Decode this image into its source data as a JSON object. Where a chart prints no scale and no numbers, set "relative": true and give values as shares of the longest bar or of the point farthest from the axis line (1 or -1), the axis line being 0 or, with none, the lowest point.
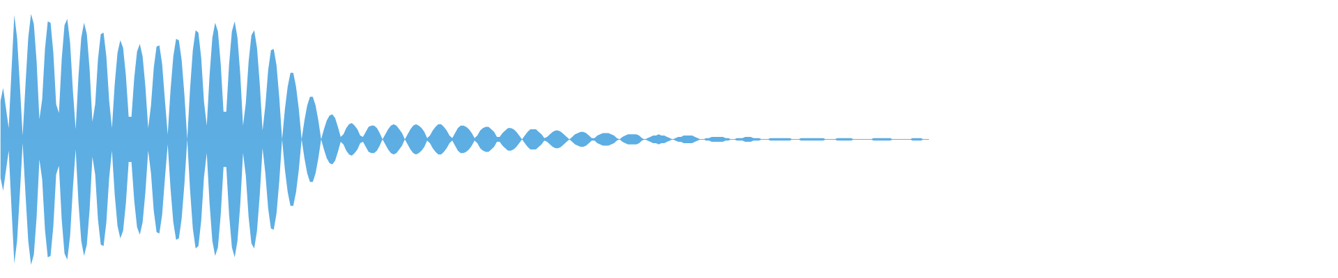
{
  "chart_data": {
    "type": "area",
    "relative": true,
    "tick_labels": false,
    "categories": [
      null,
      null,
      null,
      null,
      null,
      null,
      null,
      null,
      null,
      null,
      null,
      null,
      null,
      null,
      null,
      null,
      null,
      null,
      null,
      null,
      null,
      null,
      null,
      null,
      null,
      null,
      null,
      null,
      null,
      null,
      null,
      null,
      null,
      null,
      null,
      null,
      null,
      null,
      null,
      null,
      null,
      null,
      null,
      null,
      null,
      null,
      null,
      null,
      null,
      null,
      null,
      null,
      null,
      null,
      null,
      null,
      null,
      null,
      null,
      null,
      null,
      null,
      null,
      null,
      null,
      null,
      null,
      null,
      null,
      null,
      null,
      null,
      null,
      null,
      null,
      null,
      null,
      null,
      null,
      null,
      null,
      null,
      null,
      null,
      null,
      null,
      null,
      null,
      null,
      null,
      null,
      null,
      null,
      null,
      null,
      null,
      null,
      null,
      null,
      null,
      null,
      null,
      null,
      null,
      null,
      null,
      null,
      null,
      null,
      null,
      null,
      null,
      null,
      null,
      null,
      null,
      null,
      null,
      null,
      null,
      null,
      null,
      null,
      null,
      null,
      null,
      null,
      null,
      null,
      null,
      null,
      null,
      null,
      null,
      null,
      null,
      null,
      null,
      null,
      null,
      null,
      null,
      null,
      null,
      null,
      null,
      null,
      null,
      null,
      null,
      null,
      null,
      null,
      null,
      null,
      null,
      null,
      null,
      null,
      null,
      null,
      null,
      null,
      null,
      null,
      null,
      null,
      null,
      null,
      null,
      null,
      null,
      null,
      null,
      null,
      null,
      null,
      null,
      null,
      null,
      null,
      null,
      null,
      null,
      null,
      null,
      null,
      null,
      null,
      null,
      null,
      null,
      null,
      null,
      null,
      null,
      null,
      null,
      null,
      null,
      null,
      null,
      null,
      null,
      null,
      null,
      null,
      null,
      null,
      null,
      null,
      null,
      null,
      null,
      null,
      null,
      null,
      null,
      null,
      null,
      null,
      null,
      null,
      null,
      null,
      null,
      null,
      null,
      null,
      null,
      null,
      null,
      null,
      null,
      null,
      null,
      null,
      null,
      null,
      null,
      null,
      null,
      null,
      null,
      null,
      null,
      null,
      null,
      null,
      null,
      null,
      null,
      null,
      null,
      null,
      null,
      null,
      null,
      null,
      null,
      null,
      null,
      null,
      null,
      null,
      null,
      null,
      null,
      null,
      null,
      null,
      null,
      null,
      null,
      null,
      null,
      null,
      null,
      null,
      null,
      null,
      null,
      null,
      null,
      null,
      null,
      null,
      null,
      null,
      null,
      null,
      null,
      null,
      null,
      null,
      null,
      null,
      null,
      null,
      null,
      null,
      null,
      null,
      null,
      null,
      null,
      null,
      null,
      null,
      null,
      null,
      null,
      null,
      null,
      null,
      null,
      null,
      null,
      null,
      null,
      null,
      null,
      null,
      null,
      null,
      null,
      null,
      null,
      null,
      null,
      null,
      null,
      null,
      null
    ],
    "series": [
      {
        "color": "#5dade2",
        "values": [
          0.3,
          0.41,
          0.25,
          0.09,
          0.55,
          0.99,
          0.81,
          0.43,
          0.03,
          0.43,
          0.81,
          1.0,
          0.92,
          0.62,
          0.16,
          0.32,
          0.72,
          0.94,
          0.93,
          0.69,
          0.28,
          0.21,
          0.64,
          0.91,
          0.96,
          0.77,
          0.39,
          0.08,
          0.5,
          0.81,
          0.93,
          0.84,
          0.56,
          0.14,
          0.28,
          0.64,
          0.84,
          0.85,
          0.66,
          0.31,
          0.09,
          0.44,
          0.69,
          0.79,
          0.73,
          0.51,
          0.18,
          0.18,
          0.49,
          0.7,
          0.76,
          0.66,
          0.42,
          0.09,
          0.27,
          0.57,
          0.74,
          0.75,
          0.6,
          0.31,
          0.04,
          0.39,
          0.66,
          0.8,
          0.79,
          0.63,
          0.35,
          0.0,
          0.4,
          0.71,
          0.87,
          0.85,
          0.65,
          0.3,
          0.11,
          0.51,
          0.81,
          0.93,
          0.86,
          0.6,
          0.22,
          0.22,
          0.6,
          0.86,
          0.94,
          0.81,
          0.52,
          0.11,
          0.29,
          0.62,
          0.83,
          0.87,
          0.73,
          0.44,
          0.07,
          0.27,
          0.55,
          0.71,
          0.72,
          0.59,
          0.33,
          0.0,
          0.24,
          0.42,
          0.53,
          0.53,
          0.42,
          0.24,
          0.0,
          0.15,
          0.27,
          0.34,
          0.34,
          0.27,
          0.15,
          0.0,
          0.08,
          0.15,
          0.19,
          0.2,
          0.17,
          0.1,
          0.02,
          0.04,
          0.09,
          0.12,
          0.13,
          0.11,
          0.08,
          0.03,
          0.02,
          0.06,
          0.1,
          0.11,
          0.11,
          0.09,
          0.05,
          0.0,
          0.04,
          0.08,
          0.11,
          0.12,
          0.11,
          0.08,
          0.05,
          0.0,
          0.04,
          0.08,
          0.11,
          0.12,
          0.11,
          0.09,
          0.06,
          0.01,
          0.03,
          0.07,
          0.1,
          0.12,
          0.12,
          0.1,
          0.07,
          0.03,
          0.01,
          0.05,
          0.09,
          0.11,
          0.11,
          0.1,
          0.08,
          0.05,
          0.01,
          0.03,
          0.07,
          0.09,
          0.1,
          0.1,
          0.08,
          0.06,
          0.02,
          0.02,
          0.05,
          0.07,
          0.09,
          0.09,
          0.08,
          0.06,
          0.03,
          0.0,
          0.03,
          0.06,
          0.08,
          0.08,
          0.08,
          0.06,
          0.04,
          0.01,
          0.02,
          0.04,
          0.06,
          0.07,
          0.07,
          0.06,
          0.04,
          0.02,
          0.0,
          0.02,
          0.04,
          0.05,
          0.06,
          0.06,
          0.05,
          0.03,
          0.01,
          0.01,
          0.03,
          0.04,
          0.05,
          0.05,
          0.05,
          0.04,
          0.03,
          0.01,
          0.0,
          0.02,
          0.03,
          0.04,
          0.04,
          0.04,
          0.04,
          0.03,
          0.01,
          0.0,
          0.01,
          0.02,
          0.03,
          0.03,
          0.04,
          0.03,
          0.03,
          0.02,
          0.01,
          0.0,
          0.01,
          0.02,
          0.02,
          0.03,
          0.03,
          0.03,
          0.03,
          0.02,
          0.01,
          0.0,
          0.0,
          0.01,
          0.01,
          0.02,
          0.02,
          0.02,
          0.02,
          0.02,
          0.01,
          0.01,
          0.0,
          0.0,
          0.01,
          0.01,
          0.01,
          0.02,
          0.02,
          0.02,
          0.01,
          0.01,
          0.01,
          0.0,
          0.0,
          0.0,
          0.01,
          0.01,
          0.01,
          0.01,
          0.01,
          0.01,
          0.01,
          0.01,
          0.0,
          0.0,
          0.0,
          0.01,
          0.01,
          0.01,
          0.01,
          0.01,
          0.01,
          0.01,
          0.01,
          0.01,
          0.0,
          0.0,
          0.0,
          0.0,
          0.01,
          0.01,
          0.01,
          0.01,
          0.01,
          0.01,
          0.0,
          0.0,
          0.0,
          0.0,
          0.0,
          0.0,
          0.0,
          0.01,
          0.01,
          0.01,
          0.01,
          0.01,
          0.01,
          0.01,
          0.0,
          0.0,
          0.0,
          0.0,
          0.0,
          0.0,
          0.0,
          0.01,
          0.01,
          0.01,
          0.01,
          0.0,
          0.0,
          0.0
        ]
      },
      {
        "color": "#5daee3",
        "values": [
          -0.3,
          -0.41,
          -0.25,
          -0.09,
          -0.55,
          -0.99,
          -0.81,
          -0.43,
          -0.03,
          -0.43,
          -0.81,
          -1.0,
          -0.92,
          -0.62,
          -0.16,
          -0.32,
          -0.72,
          -0.94,
          -0.93,
          -0.69,
          -0.28,
          -0.21,
          -0.64,
          -0.91,
          -0.96,
          -0.77,
          -0.39,
          -0.08,
          -0.5,
          -0.81,
          -0.93,
          -0.84,
          -0.56,
          -0.14,
          -0.28,
          -0.64,
          -0.84,
          -0.85,
          -0.66,
          -0.31,
          -0.09,
          -0.44,
          -0.69,
          -0.79,
          -0.73,
          -0.51,
          -0.18,
          -0.18,
          -0.49,
          -0.7,
          -0.76,
          -0.66,
          -0.42,
          -0.09,
          -0.27,
          -0.57,
          -0.74,
          -0.75,
          -0.6,
          -0.31,
          -0.04,
          -0.39,
          -0.66,
          -0.8,
          -0.79,
          -0.63,
          -0.35,
          0.0,
          -0.4,
          -0.71,
          -0.87,
          -0.85,
          -0.65,
          -0.3,
          -0.11,
          -0.51,
          -0.81,
          -0.93,
          -0.86,
          -0.6,
          -0.22,
          -0.22,
          -0.6,
          -0.86,
          -0.94,
          -0.81,
          -0.52,
          -0.11,
          -0.29,
          -0.62,
          -0.83,
          -0.87,
          -0.73,
          -0.44,
          -0.07,
          -0.27,
          -0.55,
          -0.71,
          -0.72,
          -0.59,
          -0.33,
          0.0,
          -0.24,
          -0.42,
          -0.53,
          -0.53,
          -0.42,
          -0.24,
          0.0,
          -0.15,
          -0.27,
          -0.34,
          -0.34,
          -0.27,
          -0.15,
          0.0,
          -0.08,
          -0.15,
          -0.19,
          -0.2,
          -0.17,
          -0.1,
          -0.02,
          -0.04,
          -0.09,
          -0.12,
          -0.13,
          -0.11,
          -0.08,
          -0.03,
          -0.02,
          -0.06,
          -0.1,
          -0.11,
          -0.11,
          -0.09,
          -0.05,
          0.0,
          -0.04,
          -0.08,
          -0.11,
          -0.12,
          -0.11,
          -0.08,
          -0.05,
          0.0,
          -0.04,
          -0.08,
          -0.11,
          -0.12,
          -0.11,
          -0.09,
          -0.06,
          -0.01,
          -0.03,
          -0.07,
          -0.1,
          -0.12,
          -0.12,
          -0.1,
          -0.07,
          -0.03,
          -0.01,
          -0.05,
          -0.09,
          -0.11,
          -0.11,
          -0.1,
          -0.08,
          -0.05,
          -0.01,
          -0.03,
          -0.07,
          -0.09,
          -0.1,
          -0.1,
          -0.08,
          -0.06,
          -0.02,
          -0.02,
          -0.05,
          -0.07,
          -0.09,
          -0.09,
          -0.08,
          -0.06,
          -0.03,
          0.0,
          -0.03,
          -0.06,
          -0.08,
          -0.08,
          -0.08,
          -0.06,
          -0.04,
          -0.01,
          -0.02,
          -0.04,
          -0.06,
          -0.07,
          -0.07,
          -0.06,
          -0.04,
          -0.02,
          0.0,
          -0.02,
          -0.04,
          -0.05,
          -0.06,
          -0.06,
          -0.05,
          -0.03,
          -0.01,
          -0.01,
          -0.03,
          -0.04,
          -0.05,
          -0.05,
          -0.05,
          -0.04,
          -0.03,
          -0.01,
          0.0,
          -0.02,
          -0.03,
          -0.04,
          -0.04,
          -0.04,
          -0.04,
          -0.03,
          -0.01,
          0.0,
          -0.01,
          -0.02,
          -0.03,
          -0.03,
          -0.04,
          -0.03,
          -0.03,
          -0.02,
          -0.01,
          0.0,
          -0.01,
          -0.02,
          -0.02,
          -0.03,
          -0.03,
          -0.03,
          -0.03,
          -0.02,
          -0.01,
          0.0,
          0.0,
          -0.01,
          -0.01,
          -0.02,
          -0.02,
          -0.02,
          -0.02,
          -0.02,
          -0.01,
          -0.01,
          0.0,
          0.0,
          -0.01,
          -0.01,
          -0.01,
          -0.02,
          -0.02,
          -0.02,
          -0.01,
          -0.01,
          -0.01,
          0.0,
          0.0,
          0.0,
          -0.01,
          -0.01,
          -0.01,
          -0.01,
          -0.01,
          -0.01,
          -0.01,
          -0.01,
          0.0,
          0.0,
          0.0,
          -0.01,
          -0.01,
          -0.01,
          -0.01,
          -0.01,
          -0.01,
          -0.01,
          -0.01,
          -0.01,
          0.0,
          0.0,
          0.0,
          0.0,
          -0.01,
          -0.01,
          -0.01,
          -0.01,
          -0.01,
          -0.01,
          0.0,
          0.0,
          0.0,
          0.0,
          0.0,
          0.0,
          0.0,
          -0.01,
          -0.01,
          -0.01,
          -0.01,
          -0.01,
          -0.01,
          -0.01,
          0.0,
          0.0,
          0.0,
          0.0,
          0.0,
          0.0,
          0.0,
          -0.01,
          -0.01,
          -0.01,
          -0.01,
          0.0,
          0.0,
          0.0
        ]
      }
    ]
  }
}
